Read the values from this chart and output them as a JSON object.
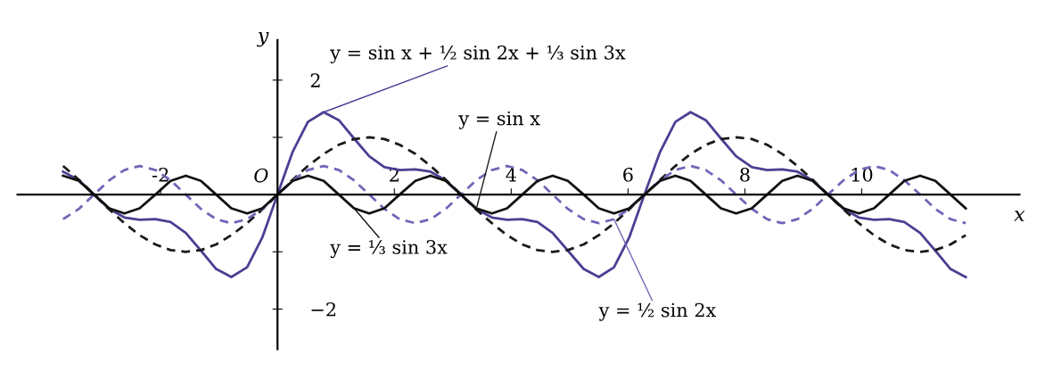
{
  "chart_data": {
    "type": "line",
    "xlabel": "x",
    "ylabel": "y",
    "x": [
      -3.67,
      -3.4,
      -3.14,
      -2.88,
      -2.62,
      -2.36,
      -2.09,
      -1.83,
      -1.57,
      -1.31,
      -1.05,
      -0.79,
      -0.52,
      -0.26,
      0,
      0.26,
      0.52,
      0.79,
      1.05,
      1.31,
      1.57,
      1.83,
      2.09,
      2.36,
      2.62,
      2.88,
      3.14,
      3.4,
      3.67,
      3.93,
      4.19,
      4.45,
      4.71,
      4.97,
      5.24,
      5.5,
      5.76,
      6.02,
      6.28,
      6.55,
      6.81,
      7.07,
      7.33,
      7.59,
      7.85,
      8.12,
      8.38,
      8.64,
      8.9,
      9.16,
      9.42,
      9.69,
      9.95,
      10.21,
      10.47,
      10.73,
      11.0,
      11.26,
      11.52,
      11.78
    ],
    "series": [
      {
        "name": "y = sin x + ½ sin 2x + ⅓ sin 3x",
        "color": "#4b3f93",
        "line_style": "solid",
        "values": [
          0.4,
          0.25,
          0,
          -0.25,
          -0.4,
          -0.44,
          -0.43,
          -0.48,
          -0.67,
          -0.98,
          -1.3,
          -1.44,
          -1.27,
          -0.75,
          0,
          0.75,
          1.27,
          1.44,
          1.3,
          0.98,
          0.67,
          0.48,
          0.43,
          0.44,
          0.4,
          0.25,
          0,
          -0.25,
          -0.4,
          -0.44,
          -0.43,
          -0.48,
          -0.67,
          -0.98,
          -1.3,
          -1.44,
          -1.27,
          -0.75,
          0,
          0.75,
          1.27,
          1.44,
          1.3,
          0.98,
          0.67,
          0.48,
          0.43,
          0.44,
          0.4,
          0.25,
          0,
          -0.25,
          -0.4,
          -0.44,
          -0.43,
          -0.48,
          -0.67,
          -0.98,
          -1.3,
          -1.44
        ]
      },
      {
        "name": "y = sin x",
        "color": "#1a1a1a",
        "line_style": "dashed",
        "values": [
          0.5,
          0.26,
          0,
          -0.26,
          -0.5,
          -0.71,
          -0.87,
          -0.97,
          -1,
          -0.97,
          -0.87,
          -0.71,
          -0.5,
          -0.26,
          0,
          0.26,
          0.5,
          0.71,
          0.87,
          0.97,
          1,
          0.97,
          0.87,
          0.71,
          0.5,
          0.26,
          0,
          -0.26,
          -0.5,
          -0.71,
          -0.87,
          -0.97,
          -1,
          -0.97,
          -0.87,
          -0.71,
          -0.5,
          -0.26,
          0,
          0.26,
          0.5,
          0.71,
          0.87,
          0.97,
          1,
          0.97,
          0.87,
          0.71,
          0.5,
          0.26,
          0,
          -0.26,
          -0.5,
          -0.71,
          -0.87,
          -0.97,
          -1,
          -0.97,
          -0.87,
          -0.71
        ]
      },
      {
        "name": "y = ½ sin 2x",
        "color": "#6f66b8",
        "line_style": "dashed",
        "values": [
          -0.43,
          -0.25,
          0,
          0.25,
          0.43,
          0.5,
          0.43,
          0.25,
          0,
          -0.25,
          -0.43,
          -0.5,
          -0.43,
          -0.25,
          0,
          0.25,
          0.43,
          0.5,
          0.43,
          0.25,
          0,
          -0.25,
          -0.43,
          -0.5,
          -0.43,
          -0.25,
          0,
          0.25,
          0.43,
          0.5,
          0.43,
          0.25,
          0,
          -0.25,
          -0.43,
          -0.5,
          -0.43,
          -0.25,
          0,
          0.25,
          0.43,
          0.5,
          0.43,
          0.25,
          0,
          -0.25,
          -0.43,
          -0.5,
          -0.43,
          -0.25,
          0,
          0.25,
          0.43,
          0.5,
          0.43,
          0.25,
          0,
          -0.25,
          -0.43,
          -0.5
        ]
      },
      {
        "name": "y = ⅓ sin 3x",
        "color": "#111111",
        "line_style": "solid",
        "values": [
          0.33,
          0.24,
          0,
          -0.24,
          -0.33,
          -0.24,
          0,
          0.24,
          0.33,
          0.24,
          0,
          -0.24,
          -0.33,
          -0.24,
          0,
          0.24,
          0.33,
          0.24,
          0,
          -0.24,
          -0.33,
          -0.24,
          0,
          0.24,
          0.33,
          0.24,
          0,
          -0.24,
          -0.33,
          -0.24,
          0,
          0.24,
          0.33,
          0.24,
          0,
          -0.24,
          -0.33,
          -0.24,
          0,
          0.24,
          0.33,
          0.24,
          0,
          -0.24,
          -0.33,
          -0.24,
          0,
          0.24,
          0.33,
          0.24,
          0,
          -0.24,
          -0.33,
          -0.24,
          0,
          0.24,
          0.33,
          0.24,
          0,
          -0.24
        ]
      }
    ],
    "xlim": [
      -4.75,
      13.0
    ],
    "ylim": [
      -3.1,
      3.4
    ],
    "xticks": [
      -2,
      2,
      4,
      6,
      8,
      10
    ],
    "yticks": [
      {
        "value": -2,
        "label": "−2"
      },
      {
        "value": -1,
        "label": null
      },
      {
        "value": 1,
        "label": null
      },
      2
    ],
    "annotations": [
      "O"
    ],
    "grid": false
  }
}
